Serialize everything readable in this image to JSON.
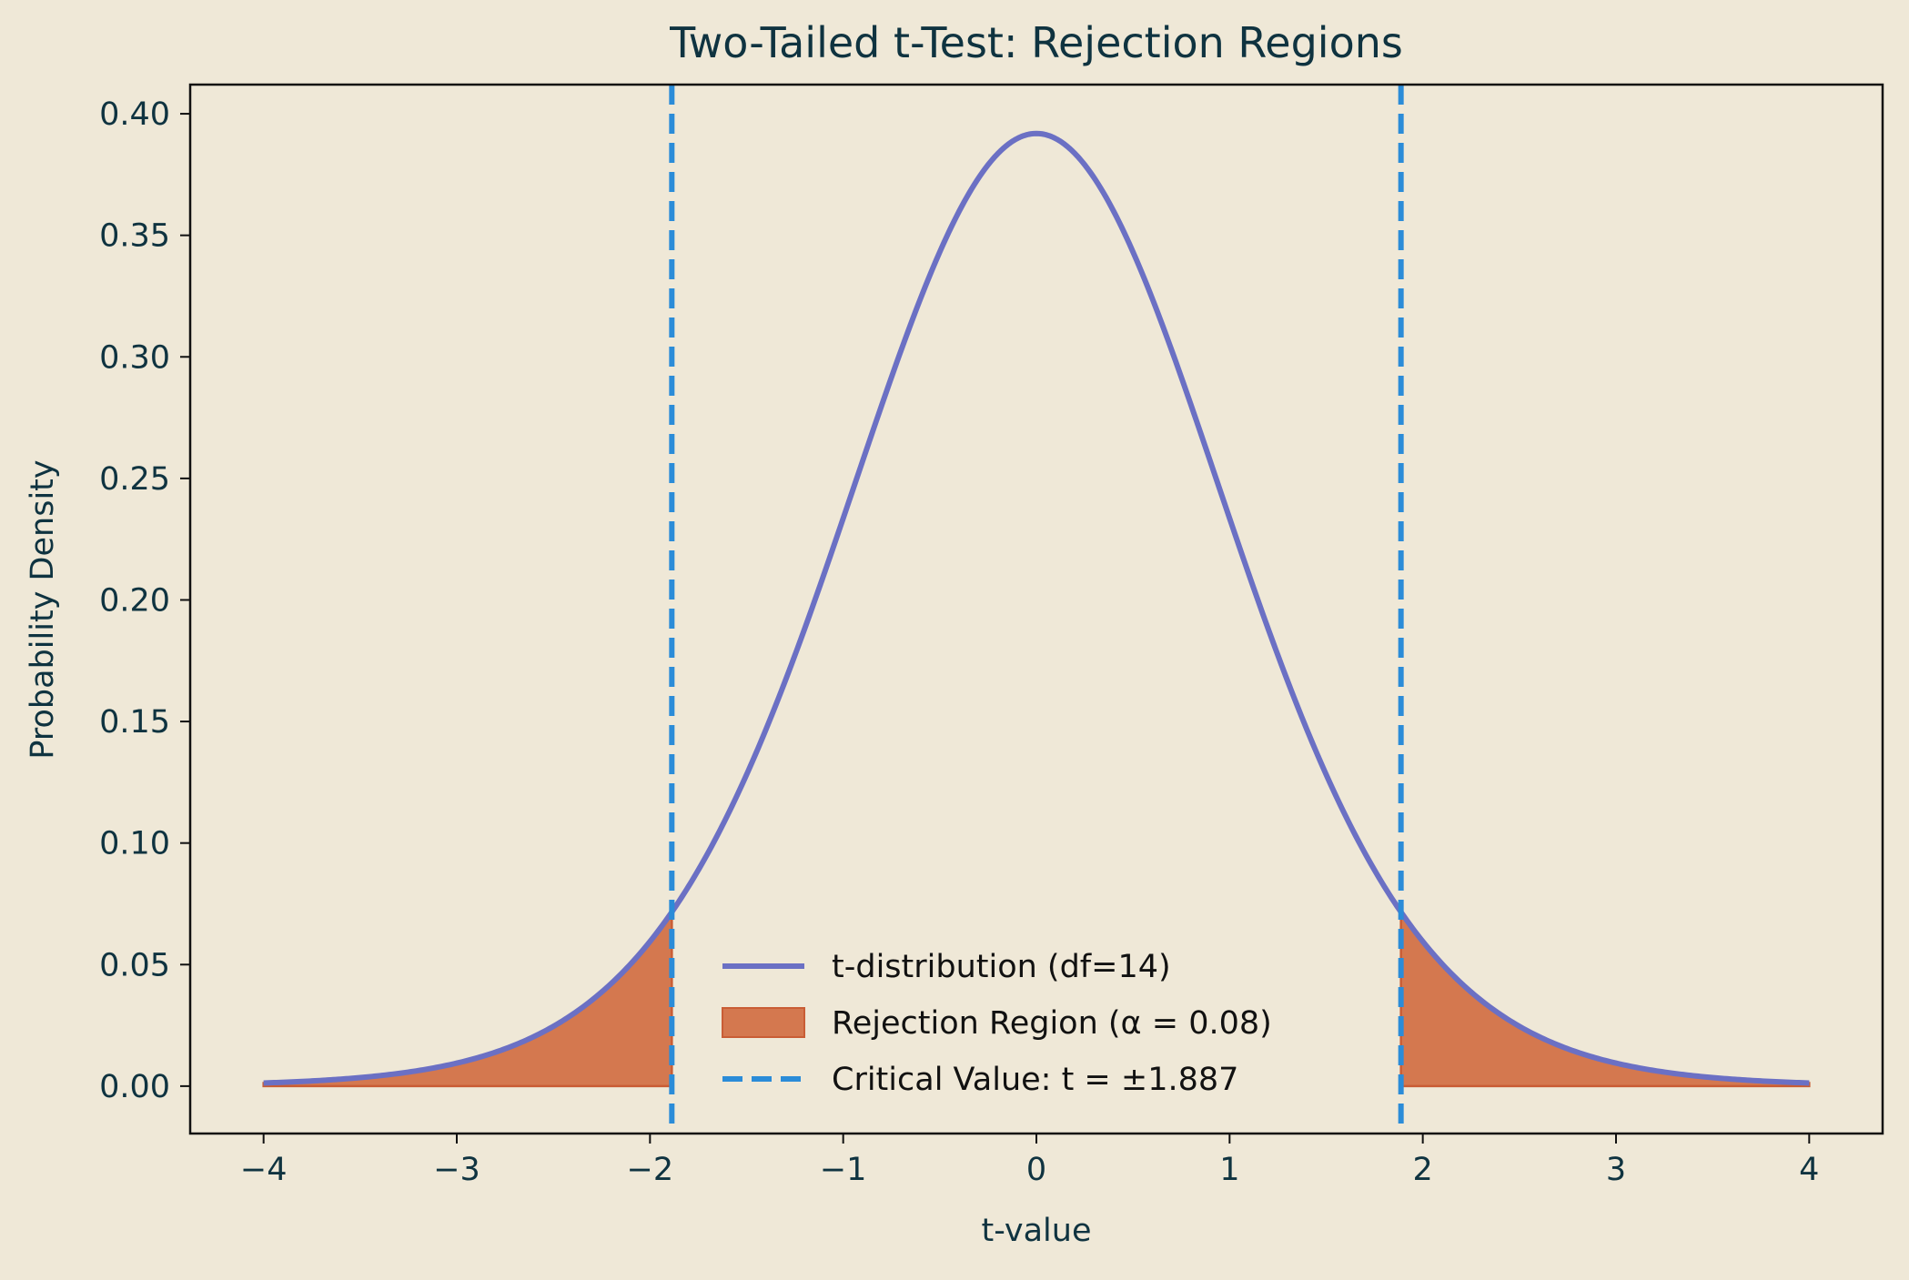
{
  "chart_data": {
    "type": "line",
    "title": "Two-Tailed t-Test: Rejection Regions",
    "xlabel": "t-value",
    "ylabel": "Probability Density",
    "xlim": [
      -4.38,
      4.38
    ],
    "ylim": [
      -0.0195,
      0.412
    ],
    "x_ticks": [
      -4,
      -3,
      -2,
      -1,
      0,
      1,
      2,
      3,
      4
    ],
    "x_tick_labels": [
      "−4",
      "−3",
      "−2",
      "−1",
      "0",
      "1",
      "2",
      "3",
      "4"
    ],
    "y_ticks": [
      0.0,
      0.05,
      0.1,
      0.15,
      0.2,
      0.25,
      0.3,
      0.35,
      0.4
    ],
    "y_tick_labels": [
      "0.00",
      "0.05",
      "0.10",
      "0.15",
      "0.20",
      "0.25",
      "0.30",
      "0.35",
      "0.40"
    ],
    "grid": false,
    "legend_position": "bottom-center",
    "series": [
      {
        "name": "t-distribution (df=14)",
        "kind": "line",
        "color": "#6b70c4",
        "x": [
          -4.0,
          -3.5,
          -3.0,
          -2.75,
          -2.5,
          -2.25,
          -2.0,
          -1.887,
          -1.75,
          -1.5,
          -1.25,
          -1.0,
          -0.75,
          -0.5,
          -0.25,
          0.0,
          0.25,
          0.5,
          0.75,
          1.0,
          1.25,
          1.5,
          1.75,
          1.887,
          2.0,
          2.25,
          2.5,
          2.75,
          3.0,
          3.5,
          4.0
        ],
        "y": [
          0.0022,
          0.0057,
          0.0142,
          0.0216,
          0.0323,
          0.0471,
          0.0659,
          0.0748,
          0.0881,
          0.129,
          0.1786,
          0.2367,
          0.2973,
          0.3394,
          0.3778,
          0.3917,
          0.3778,
          0.3394,
          0.2973,
          0.2367,
          0.1786,
          0.129,
          0.0881,
          0.0748,
          0.0659,
          0.0471,
          0.0323,
          0.0216,
          0.0142,
          0.0057,
          0.0022
        ]
      },
      {
        "name": "Rejection Region (α = 0.08)",
        "kind": "area",
        "color": "#d4784f",
        "edge_color": "#c95d35",
        "tails": [
          {
            "x_from": -4.0,
            "x_to": -1.887
          },
          {
            "x_from": 1.887,
            "x_to": 4.0
          }
        ]
      },
      {
        "name": "Critical Value: t = ±1.887",
        "kind": "vline",
        "color": "#2b8cd8",
        "x": [
          -1.887,
          1.887
        ]
      }
    ]
  }
}
